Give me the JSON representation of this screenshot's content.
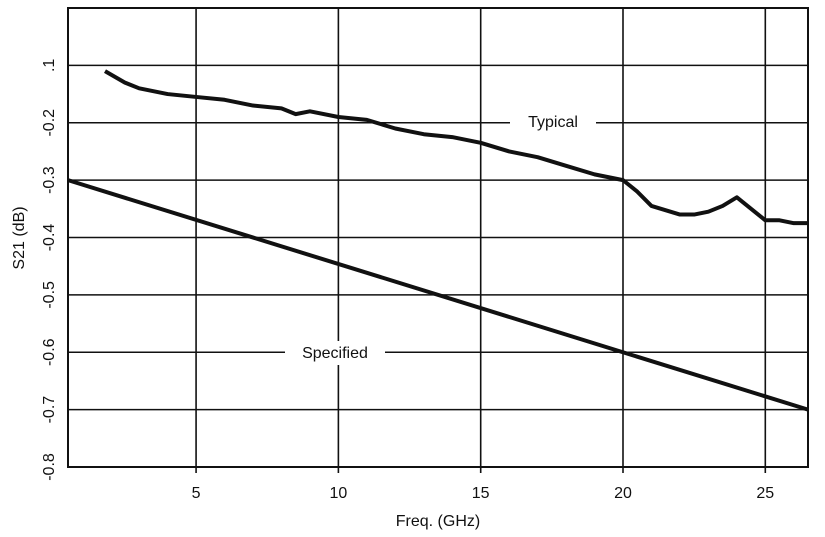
{
  "chart_data": {
    "type": "line",
    "x_label": "Freq. (GHz)",
    "y_label": "S21 (dB)",
    "xlim": [
      0.5,
      26.5
    ],
    "xticks": [
      5,
      10,
      15,
      20,
      25
    ],
    "ylim": [
      -0.8,
      0
    ],
    "yticks": [
      -0.8,
      -0.7,
      -0.6,
      -0.5,
      -0.4,
      -0.3,
      -0.2,
      {
        "value": -0.1,
        "label": ".1"
      }
    ],
    "grid": true,
    "series": [
      {
        "name": "Typical",
        "color": "#111111",
        "x": [
          1.8,
          2.5,
          3,
          4,
          5,
          6,
          7,
          8,
          8.5,
          9,
          10,
          11,
          12,
          13,
          14,
          15,
          16,
          17,
          18,
          19,
          20,
          20.5,
          21,
          22,
          22.5,
          23,
          23.5,
          24,
          24.5,
          25,
          25.5,
          26,
          26.5
        ],
        "values": [
          -0.11,
          -0.13,
          -0.14,
          -0.15,
          -0.155,
          -0.16,
          -0.17,
          -0.175,
          -0.185,
          -0.18,
          -0.19,
          -0.195,
          -0.21,
          -0.22,
          -0.225,
          -0.235,
          -0.25,
          -0.26,
          -0.275,
          -0.29,
          -0.3,
          -0.32,
          -0.345,
          -0.36,
          -0.36,
          -0.355,
          -0.345,
          -0.33,
          -0.35,
          -0.37,
          -0.37,
          -0.375,
          -0.375
        ]
      },
      {
        "name": "Specified",
        "color": "#111111",
        "x": [
          0.5,
          26.5
        ],
        "values": [
          -0.3,
          -0.7
        ]
      }
    ]
  }
}
